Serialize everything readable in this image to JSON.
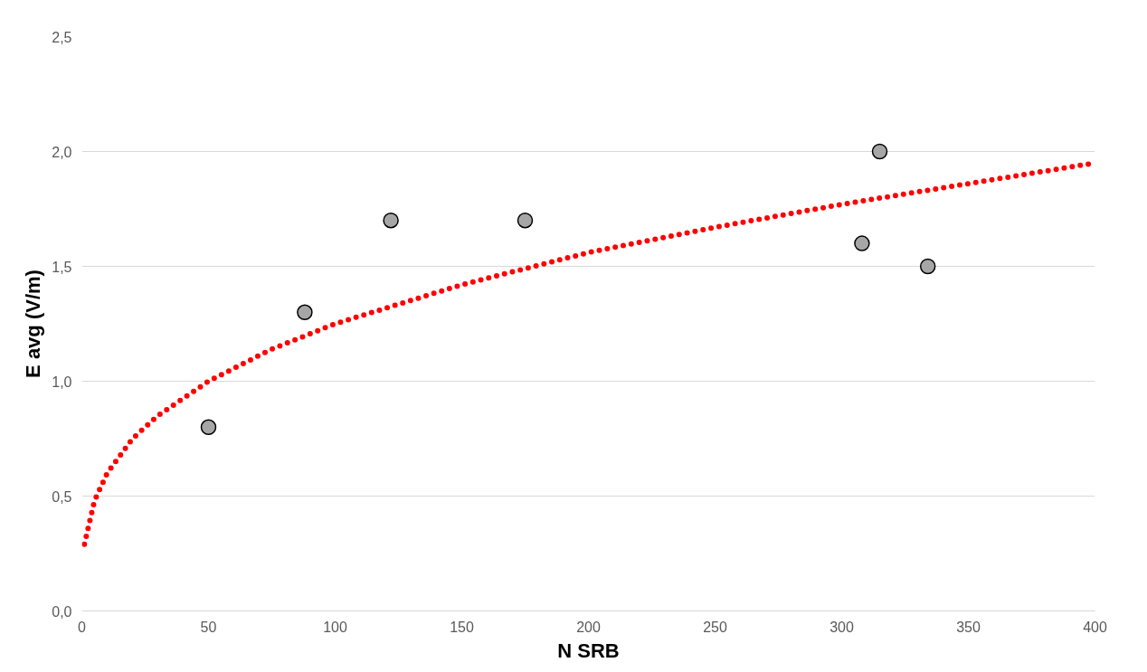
{
  "chart_data": {
    "type": "scatter",
    "xlabel": "N SRB",
    "ylabel": "E avg (V/m)",
    "xlim": [
      0,
      400
    ],
    "xticks": [
      0,
      50,
      100,
      150,
      200,
      250,
      300,
      350,
      400
    ],
    "ylim": [
      0,
      2.5
    ],
    "yticks": [
      {
        "value": 0,
        "label": "0,0"
      },
      {
        "value": 0.5,
        "label": "0,5"
      },
      {
        "value": 1,
        "label": "1,0"
      },
      {
        "value": 1.5,
        "label": "1,5"
      },
      {
        "value": 2,
        "label": "2,0"
      },
      {
        "value": 2.5,
        "label": "2,5"
      }
    ],
    "grid": "y",
    "series": [
      {
        "marker": "circle",
        "color": "#a6a6a6",
        "x": [
          50,
          88,
          122,
          175,
          308,
          315,
          334
        ],
        "values": [
          0.8,
          1.3,
          1.7,
          1.7,
          1.6,
          2.0,
          1.5
        ]
      },
      {
        "type": "line",
        "marker": "none",
        "line_style": "dotted",
        "color": "#ff0000",
        "x": [
          1,
          5,
          10,
          20,
          30,
          50,
          75,
          100,
          150,
          200,
          250,
          300,
          350,
          400
        ],
        "values": [
          0.29,
          0.48,
          0.6,
          0.75,
          0.85,
          1.0,
          1.14,
          1.25,
          1.42,
          1.56,
          1.67,
          1.77,
          1.86,
          1.95
        ]
      }
    ]
  }
}
